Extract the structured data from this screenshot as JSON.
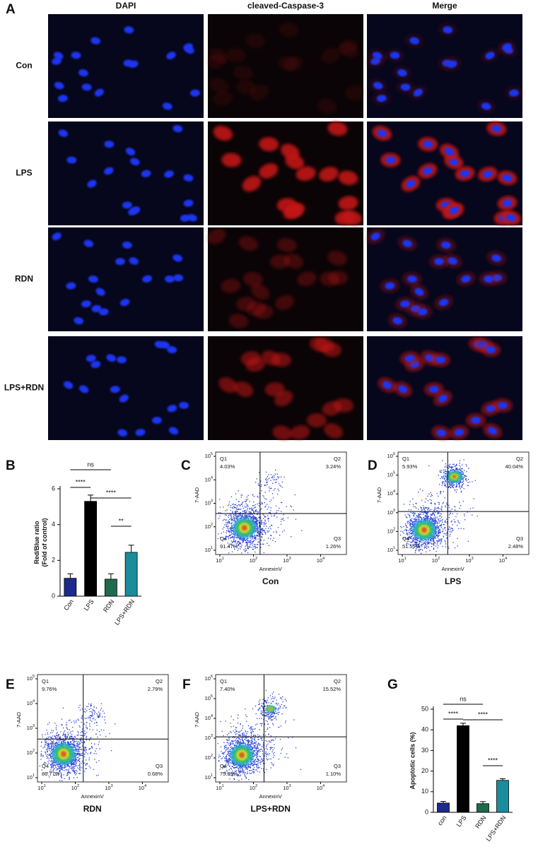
{
  "microscopy": {
    "letter": "A",
    "columns": [
      "DAPI",
      "cleaved-Caspase-3",
      "Merge"
    ],
    "rows": [
      "Con",
      "LPS",
      "RDN",
      "LPS+RDN"
    ]
  },
  "chart_data": [
    {
      "type": "bar",
      "letter": "B",
      "y_label": [
        "Red/Blue ratio",
        "(Fold of control)"
      ],
      "categories": [
        "Con",
        "LPS",
        "RDN",
        "LPS+RDN"
      ],
      "values": [
        1.0,
        5.3,
        0.95,
        2.45
      ],
      "errors": [
        0.25,
        0.35,
        0.3,
        0.4
      ],
      "colors": [
        "#1b2a8c",
        "#000000",
        "#1d6b4c",
        "#1a8c9c"
      ],
      "ylim": [
        0,
        6
      ],
      "yticks": [
        0,
        2,
        4,
        6
      ],
      "annotations": [
        {
          "text": "ns",
          "between": [
            "Con",
            "RDN"
          ]
        },
        {
          "text": "****",
          "between": [
            "Con",
            "LPS"
          ]
        },
        {
          "text": "****",
          "between": [
            "LPS",
            "LPS+RDN"
          ]
        },
        {
          "text": "**",
          "between": [
            "RDN",
            "LPS+RDN"
          ]
        }
      ]
    },
    {
      "type": "bar",
      "letter": "G",
      "y_label": [
        "Apoptotic cells (%)"
      ],
      "categories": [
        "con",
        "LPS",
        "RDN",
        "LPS+RDN"
      ],
      "values": [
        4.5,
        42,
        4.2,
        15.5
      ],
      "errors": [
        0.8,
        1.2,
        1.0,
        0.8
      ],
      "colors": [
        "#1b2a8c",
        "#000000",
        "#1d6b4c",
        "#1a8c9c"
      ],
      "ylim": [
        0,
        50
      ],
      "yticks": [
        0,
        10,
        20,
        30,
        40,
        50
      ],
      "annotations": [
        {
          "text": "ns",
          "between": [
            "con",
            "RDN"
          ]
        },
        {
          "text": "****",
          "between": [
            "con",
            "LPS"
          ]
        },
        {
          "text": "****",
          "between": [
            "LPS",
            "LPS+RDN"
          ]
        },
        {
          "text": "****",
          "between": [
            "RDN",
            "LPS+RDN"
          ]
        }
      ]
    }
  ],
  "flow_axes": {
    "y_label": "7-AAD",
    "x_label": "AnnexinV",
    "base": "10"
  },
  "flow_plots": [
    {
      "letter": "C",
      "title": "Con",
      "yticks": [
        1,
        2,
        3,
        4,
        5
      ],
      "xticks": [
        1,
        2,
        3,
        4
      ],
      "quadrants": [
        {
          "name": "Q1",
          "label": "4.03%"
        },
        {
          "name": "Q2",
          "label": "3.24%"
        },
        {
          "name": "Q3",
          "label": "1.26%"
        },
        {
          "name": "Q4",
          "label": "91.47%"
        }
      ]
    },
    {
      "letter": "D",
      "title": "LPS",
      "yticks": [
        1,
        2,
        3,
        4,
        5,
        6
      ],
      "xticks": [
        1,
        2,
        3,
        4
      ],
      "quadrants": [
        {
          "name": "Q1",
          "label": "5.93%"
        },
        {
          "name": "Q2",
          "label": "40.04%"
        },
        {
          "name": "Q3",
          "label": "2.48%"
        },
        {
          "name": "Q4",
          "label": "51.55%"
        }
      ]
    },
    {
      "letter": "E",
      "title": "RDN",
      "yticks": [
        1,
        2,
        3,
        4,
        5
      ],
      "xticks": [
        1,
        2,
        3,
        4
      ],
      "quadrants": [
        {
          "name": "Q1",
          "label": "9.76%"
        },
        {
          "name": "Q2",
          "label": "2.79%"
        },
        {
          "name": "Q3",
          "label": "0.68%"
        },
        {
          "name": "Q4",
          "label": "86.77%"
        }
      ]
    },
    {
      "letter": "F",
      "title": "LPS+RDN",
      "yticks": [
        1,
        2,
        3,
        4,
        5,
        6
      ],
      "xticks": [
        1,
        2,
        3,
        4
      ],
      "quadrants": [
        {
          "name": "Q1",
          "label": "7.40%"
        },
        {
          "name": "Q2",
          "label": "15.52%"
        },
        {
          "name": "Q3",
          "label": "1.10%"
        },
        {
          "name": "Q4",
          "label": "75.99%"
        }
      ]
    }
  ]
}
